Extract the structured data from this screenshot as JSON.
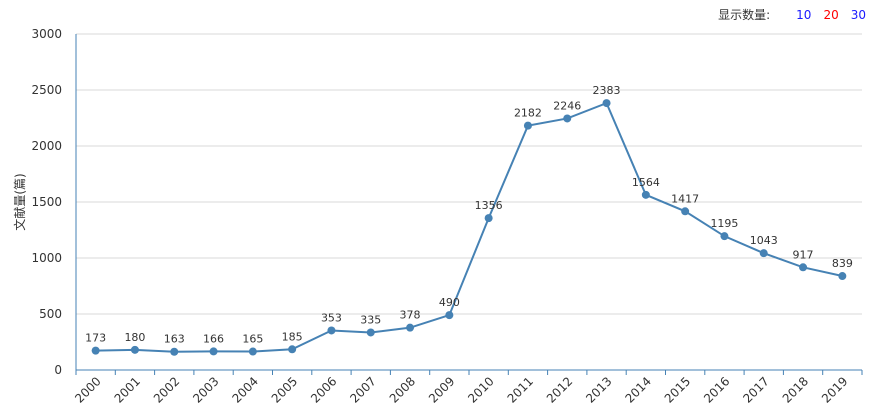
{
  "controls": {
    "display_count_label": "显示数量:",
    "options": [
      {
        "label": "10",
        "color": "#1a1aff"
      },
      {
        "label": "20",
        "color": "#ff0000"
      },
      {
        "label": "30",
        "color": "#1a1aff"
      }
    ]
  },
  "chart_data": {
    "type": "line",
    "title": "",
    "xlabel": "",
    "ylabel": "文献量(篇)",
    "ylim": [
      0,
      3000
    ],
    "yticks": [
      0,
      500,
      1000,
      1500,
      2000,
      2500,
      3000
    ],
    "grid": true,
    "line_color": "#4682b4",
    "categories": [
      "2000",
      "2001",
      "2002",
      "2003",
      "2004",
      "2005",
      "2006",
      "2007",
      "2008",
      "2009",
      "2010",
      "2011",
      "2012",
      "2013",
      "2014",
      "2015",
      "2016",
      "2017",
      "2018",
      "2019"
    ],
    "values": [
      173,
      180,
      163,
      166,
      165,
      185,
      353,
      335,
      378,
      490,
      1356,
      2182,
      2246,
      2383,
      1564,
      1417,
      1195,
      1043,
      917,
      839
    ]
  }
}
